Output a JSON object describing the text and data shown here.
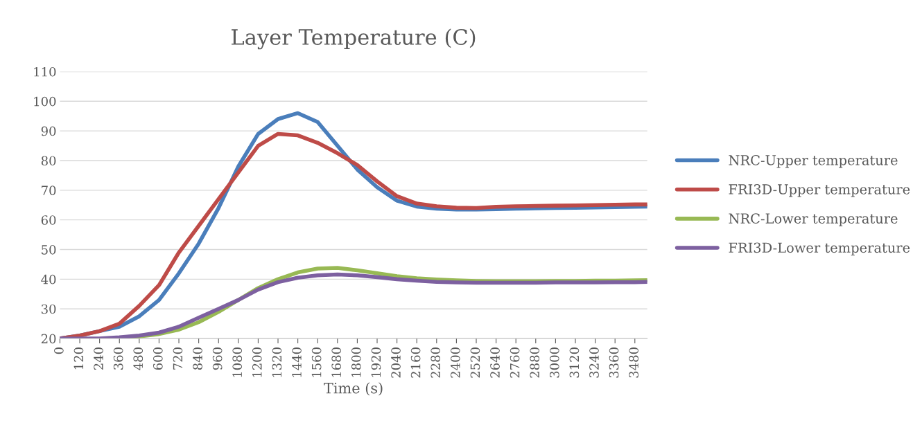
{
  "chart_data": {
    "type": "line",
    "title": "Layer Temperature (C)",
    "xlabel": "Time (s)",
    "x": [
      0,
      120,
      240,
      360,
      480,
      600,
      720,
      840,
      960,
      1080,
      1200,
      1320,
      1440,
      1560,
      1680,
      1800,
      1920,
      2040,
      2160,
      2280,
      2400,
      2520,
      2640,
      2760,
      2880,
      3000,
      3120,
      3240,
      3360,
      3480,
      3555
    ],
    "series": [
      {
        "name": "NRC-Upper temperature",
        "color": "#4a7ebb",
        "values": [
          20,
          21,
          22.5,
          24,
          27.5,
          33,
          42,
          52,
          64,
          78,
          89,
          94,
          96,
          93,
          85,
          77,
          71,
          66.5,
          64.5,
          63.8,
          63.5,
          63.5,
          63.6,
          63.8,
          63.9,
          64,
          64.1,
          64.2,
          64.3,
          64.4,
          64.5
        ]
      },
      {
        "name": "FRI3D-Upper temperature",
        "color": "#be4b48",
        "values": [
          20,
          21,
          22.5,
          25,
          31,
          38,
          49,
          58,
          67,
          76,
          85,
          89,
          88.5,
          86,
          82.5,
          78.5,
          73,
          68,
          65.5,
          64.6,
          64.1,
          64,
          64.4,
          64.6,
          64.7,
          64.8,
          64.9,
          65,
          65.1,
          65.2,
          65.2
        ]
      },
      {
        "name": "NRC-Lower temperature",
        "color": "#98b954",
        "values": [
          null,
          null,
          null,
          20.2,
          20.7,
          21.5,
          23,
          25.5,
          29,
          33,
          37,
          40,
          42.3,
          43.6,
          43.8,
          43,
          42,
          41,
          40.3,
          39.9,
          39.6,
          39.4,
          39.3,
          39.3,
          39.3,
          39.4,
          39.4,
          39.5,
          39.5,
          39.6,
          39.7
        ]
      },
      {
        "name": "FRI3D-Lower temperature",
        "color": "#7d60a0",
        "values": [
          20,
          20,
          20,
          20.4,
          21,
          22,
          24,
          27,
          30,
          33,
          36.5,
          39,
          40.5,
          41.3,
          41.6,
          41.3,
          40.7,
          40,
          39.5,
          39.1,
          38.9,
          38.8,
          38.8,
          38.8,
          38.8,
          38.9,
          38.9,
          38.9,
          39,
          39,
          39.1
        ]
      }
    ],
    "xlim": [
      0,
      3555
    ],
    "xticks": [
      0,
      120,
      240,
      360,
      480,
      600,
      720,
      840,
      960,
      1080,
      1200,
      1320,
      1440,
      1560,
      1680,
      1800,
      1920,
      2040,
      2160,
      2280,
      2400,
      2520,
      2640,
      2760,
      2880,
      3000,
      3120,
      3240,
      3360,
      3480
    ],
    "ylim": [
      20,
      110
    ],
    "yticks": [
      20,
      30,
      40,
      50,
      60,
      70,
      80,
      90,
      100,
      110
    ],
    "grid": "y",
    "legend": "right",
    "line_style": "solid",
    "marker": "none"
  }
}
